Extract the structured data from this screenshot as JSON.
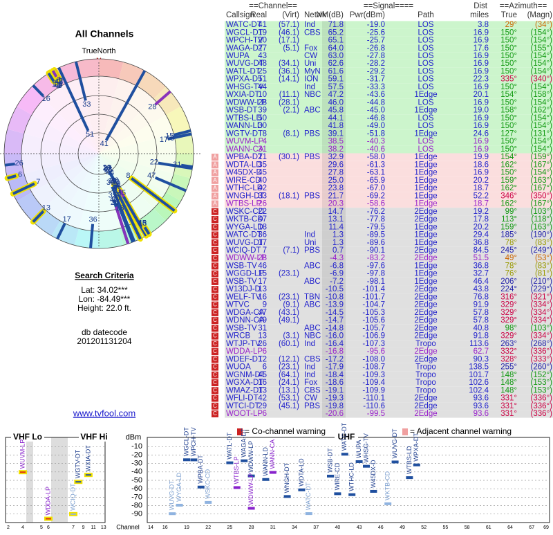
{
  "left": {
    "title": "All Channels",
    "true_north": "TrueNorth",
    "north": "N",
    "criteria_title": "Search Criteria",
    "lat": "Lat: 34.02***",
    "lon": "Lon: -84.49***",
    "height": "Height: 22.0 ft.",
    "datecode_label": "db datecode",
    "datecode": "201201131204",
    "link": "www.tvfool.com"
  },
  "table": {
    "header_top": [
      "==Channel==",
      "==Signal====",
      "Dist",
      "==Azimuth=="
    ],
    "header": [
      "Callsign",
      "Real",
      "(Virt)",
      "Netwk",
      "NM(dB)",
      "Pwr(dBm)",
      "Path",
      "miles",
      "True",
      "(Magn)"
    ],
    "groups": [
      {
        "bg": "#ccf5cc",
        "rows": [
          {
            "cells": [
              "WATC-DT",
              "41",
              "(57.1)",
              "Ind",
              "71.8",
              "-19.0",
              "LOS",
              "3.8",
              "29°",
              "(34°)"
            ],
            "color": "#2222cc"
          },
          {
            "cells": [
              "WGCL-DT",
              "19",
              "(46.1)",
              "CBS",
              "65.2",
              "-25.6",
              "LOS",
              "16.9",
              "150°",
              "(154°)"
            ],
            "color": "#2222cc"
          },
          {
            "cells": [
              "WPCH-TV",
              "20",
              "(17.1)",
              null,
              "65.1",
              "-25.7",
              "LOS",
              "16.9",
              "150°",
              "(154°)"
            ],
            "color": "#2222cc"
          },
          {
            "cells": [
              "WAGA-DT",
              "27",
              "(5.1)",
              "Fox",
              "64.0",
              "-26.8",
              "LOS",
              "17.6",
              "150°",
              "(155°)"
            ],
            "color": "#2222cc"
          },
          {
            "cells": [
              "WUPA",
              "43",
              null,
              "CW",
              "63.0",
              "-27.8",
              "LOS",
              "16.9",
              "150°",
              "(154°)"
            ],
            "color": "#2222cc"
          },
          {
            "cells": [
              "WUVG-DT",
              "48",
              "(34.1)",
              "Uni",
              "62.6",
              "-28.2",
              "LOS",
              "16.9",
              "150°",
              "(154°)"
            ],
            "color": "#2222cc"
          },
          {
            "cells": [
              "WATL-DT",
              "25",
              "(36.1)",
              "MyN",
              "61.6",
              "-29.2",
              "LOS",
              "16.9",
              "150°",
              "(154°)"
            ],
            "color": "#2222cc"
          },
          {
            "cells": [
              "WPXA-DT",
              "51",
              "(14.1)",
              "ION",
              "59.1",
              "-31.7",
              "LOS",
              "22.3",
              "335°",
              "(340°)"
            ],
            "color": "#2222cc"
          },
          {
            "cells": [
              "WHSG-TV",
              "44",
              null,
              "Ind",
              "57.5",
              "-33.3",
              "LOS",
              "16.9",
              "150°",
              "(154°)"
            ],
            "color": "#2222cc"
          },
          {
            "cells": [
              "WXIA-DT",
              "10",
              "(11.1)",
              "NBC",
              "47.2",
              "-43.6",
              "1Edge",
              "20.1",
              "154°",
              "(158°)"
            ],
            "color": "#2222cc"
          },
          {
            "cells": [
              "WDWW-LP",
              "28",
              "(28.1)",
              null,
              "46.0",
              "-44.8",
              "LOS",
              "16.9",
              "150°",
              "(154°)"
            ],
            "color": "#2222cc"
          },
          {
            "cells": [
              "WSB-DT",
              "39",
              "(2.1)",
              "ABC",
              "45.8",
              "-45.0",
              "1Edge",
              "19.0",
              "158°",
              "(162°)"
            ],
            "color": "#2222cc"
          },
          {
            "cells": [
              "WTBS-LD",
              "50",
              null,
              null,
              "44.1",
              "-46.8",
              "LOS",
              "16.9",
              "150°",
              "(154°)"
            ],
            "color": "#2222cc"
          },
          {
            "cells": [
              "WANN-LD",
              "30",
              null,
              null,
              "41.8",
              "-49.0",
              "LOS",
              "16.9",
              "150°",
              "(154°)"
            ],
            "color": "#2222cc"
          },
          {
            "cells": [
              "WGTV-DT",
              "8",
              "(8.1)",
              "PBS",
              "39.1",
              "-51.8",
              "1Edge",
              "24.6",
              "127°",
              "(131°)"
            ],
            "color": "#2222cc"
          },
          {
            "cells": [
              "WUVM-LP",
              "4",
              null,
              null,
              "38.5",
              "-40.3",
              "LOS",
              "16.9",
              "150°",
              "(154°)"
            ],
            "color": "#9922cc"
          },
          {
            "cells": [
              "WANN-CA",
              "31",
              null,
              null,
              "38.2",
              "-40.6",
              "LOS",
              "16.9",
              "150°",
              "(154°)"
            ],
            "color": "#9922cc"
          }
        ]
      },
      {
        "bg": "#fbdede",
        "rows": [
          {
            "cells": [
              "WPBA-DT",
              "21",
              "(30.1)",
              "PBS",
              "32.9",
              "-58.0",
              "1Edge",
              "19.9",
              "154°",
              "(159°)"
            ],
            "color": "#2222cc",
            "icon": "A"
          },
          {
            "cells": [
              "WDTA-LD",
              "35",
              null,
              null,
              "29.6",
              "-61.3",
              "1Edge",
              "18.6",
              "162°",
              "(167°)"
            ],
            "color": "#2222cc",
            "icon": "A"
          },
          {
            "cells": [
              "W45DX-D",
              "45",
              null,
              null,
              "27.8",
              "-63.1",
              "1Edge",
              "16.9",
              "150°",
              "(154°)"
            ],
            "color": "#2222cc",
            "icon": "A"
          },
          {
            "cells": [
              "WIRE-CD",
              "40",
              null,
              null,
              "25.0",
              "-65.9",
              "1Edge",
              "20.2",
              "159°",
              "(163°)"
            ],
            "color": "#2222cc",
            "icon": "A"
          },
          {
            "cells": [
              "WTHC-LD",
              "42",
              null,
              null,
              "23.8",
              "-67.0",
              "1Edge",
              "18.7",
              "162°",
              "(167°)"
            ],
            "color": "#2222cc",
            "icon": "A"
          },
          {
            "cells": [
              "WNGH-DT",
              "33",
              "(18.1)",
              "PBS",
              "21.7",
              "-69.2",
              "1Edge",
              "52.2",
              "346°",
              "(350°)"
            ],
            "color": "#2222cc",
            "icon": "A"
          },
          {
            "cells": [
              "WTBS-LP",
              "26",
              null,
              null,
              "20.3",
              "-58.6",
              "1Edge",
              "18.7",
              "162°",
              "(167°)"
            ],
            "color": "#9922cc",
            "icon": "A"
          }
        ]
      },
      {
        "bg": "#e0e0e0",
        "rows": [
          {
            "cells": [
              "WSKC-CD",
              "22",
              null,
              null,
              "14.7",
              "-76.2",
              "2Edge",
              "19.2",
              "99°",
              "(103°)"
            ],
            "color": "#2222cc",
            "icon": "C"
          },
          {
            "cells": [
              "WKTB-CD",
              "47",
              null,
              null,
              "13.1",
              "-77.8",
              "2Edge",
              "17.8",
              "113°",
              "(118°)"
            ],
            "color": "#2222cc",
            "icon": "C"
          },
          {
            "cells": [
              "WYGA-LD",
              "18",
              null,
              null,
              "11.4",
              "-79.5",
              "1Edge",
              "20.2",
              "159°",
              "(163°)"
            ],
            "color": "#2222cc",
            "icon": "C"
          },
          {
            "cells": [
              "WATC-DT",
              "36",
              null,
              "Ind",
              "1.3",
              "-89.5",
              "1Edge",
              "29.4",
              "185°",
              "(190°)"
            ],
            "color": "#2222cc",
            "icon": "C"
          },
          {
            "cells": [
              "WUVG-DT",
              "17",
              null,
              "Uni",
              "1.3",
              "-89.6",
              "1Edge",
              "36.8",
              "78°",
              "(83°)"
            ],
            "color": "#2222cc",
            "icon": "C"
          },
          {
            "cells": [
              "WCIQ-DT",
              "7",
              "(7.1)",
              "PBS",
              "0.7",
              "-90.1",
              "2Edge",
              "84.5",
              "245°",
              "(249°)"
            ],
            "color": "#2222cc",
            "icon": "C"
          },
          {
            "cells": [
              "WDWW-LP",
              "28",
              null,
              null,
              "-4.3",
              "-83.2",
              "2Edge",
              "51.5",
              "49°",
              "(53°)"
            ],
            "color": "#9922cc",
            "icon": "C"
          },
          {
            "cells": [
              "WSB-TV",
              "46",
              null,
              "ABC",
              "-6.8",
              "-97.6",
              "1Edge",
              "36.8",
              "78°",
              "(83°)"
            ],
            "color": "#2222cc",
            "icon": "C"
          },
          {
            "cells": [
              "WGGD-LP",
              "15",
              "(23.1)",
              null,
              "-6.9",
              "-97.8",
              "1Edge",
              "32.7",
              "76°",
              "(81°)"
            ],
            "color": "#2222cc",
            "icon": "C"
          },
          {
            "cells": [
              "WSB-TV",
              "17",
              null,
              "ABC",
              "-7.2",
              "-98.1",
              "1Edge",
              "46.4",
              "206°",
              "(210°)"
            ],
            "color": "#2222cc",
            "icon": "C"
          },
          {
            "cells": [
              "W13DJ-D",
              "13",
              null,
              null,
              "-10.5",
              "-101.4",
              "2Edge",
              "43.8",
              "224°",
              "(229°)"
            ],
            "color": "#2222cc",
            "icon": "C"
          },
          {
            "cells": [
              "WELF-TV",
              "16",
              "(23.1)",
              "TBN",
              "-10.8",
              "-101.7",
              "2Edge",
              "76.8",
              "316°",
              "(321°)"
            ],
            "color": "#2222cc",
            "icon": "C"
          },
          {
            "cells": [
              "WTVC",
              "9",
              "(9.1)",
              "ABC",
              "-13.9",
              "-104.7",
              "2Edge",
              "91.9",
              "329°",
              "(334°)"
            ],
            "color": "#2222cc",
            "icon": "C"
          },
          {
            "cells": [
              "WDGA-CA",
              "47",
              "(43.1)",
              null,
              "-14.5",
              "-105.3",
              "2Edge",
              "57.8",
              "329°",
              "(334°)"
            ],
            "color": "#2222cc",
            "icon": "C"
          },
          {
            "cells": [
              "WDNN-CA",
              "49",
              "(49.1)",
              null,
              "-14.7",
              "-105.6",
              "2Edge",
              "57.8",
              "329°",
              "(334°)"
            ],
            "color": "#2222cc",
            "icon": "C"
          },
          {
            "cells": [
              "WSB-TV",
              "31",
              null,
              "ABC",
              "-14.8",
              "-105.7",
              "2Edge",
              "40.8",
              "98°",
              "(103°)"
            ],
            "color": "#2222cc",
            "icon": "C"
          },
          {
            "cells": [
              "WRCB",
              "13",
              "(3.1)",
              "NBC",
              "-16.0",
              "-106.9",
              "2Edge",
              "91.8",
              "329°",
              "(334°)"
            ],
            "color": "#2222cc",
            "icon": "C"
          },
          {
            "cells": [
              "WTJP-TV",
              "26",
              "(60.1)",
              "Ind",
              "-16.4",
              "-107.3",
              "Tropo",
              "113.6",
              "263°",
              "(268°)"
            ],
            "color": "#2222cc",
            "icon": "C"
          },
          {
            "cells": [
              "WDDA-LP",
              "6",
              null,
              null,
              "-16.8",
              "-95.6",
              "2Edge",
              "62.7",
              "332°",
              "(336°)"
            ],
            "color": "#9922cc",
            "icon": "C"
          },
          {
            "cells": [
              "WDEF-DT",
              "12",
              "(12.1)",
              "CBS",
              "-17.2",
              "-108.0",
              "2Edge",
              "90.3",
              "328°",
              "(333°)"
            ],
            "color": "#2222cc",
            "icon": "C"
          },
          {
            "cells": [
              "WUOA",
              "6",
              "(23.1)",
              "Ind",
              "-17.9",
              "-108.7",
              "Tropo",
              "138.5",
              "255°",
              "(260°)"
            ],
            "color": "#2222cc",
            "icon": "C"
          },
          {
            "cells": [
              "WGNM-DT",
              "45",
              "(64.1)",
              "Ind",
              "-18.4",
              "-109.3",
              "Tropo",
              "101.7",
              "148°",
              "(152°)"
            ],
            "color": "#2222cc",
            "icon": "C"
          },
          {
            "cells": [
              "WGXA-DT",
              "16",
              "(24.1)",
              "Fox",
              "-18.6",
              "-109.4",
              "Tropo",
              "102.6",
              "148°",
              "(153°)"
            ],
            "color": "#2222cc",
            "icon": "C"
          },
          {
            "cells": [
              "WMAZ-DT",
              "13",
              "(13.1)",
              "CBS",
              "-19.1",
              "-109.9",
              "Tropo",
              "102.4",
              "148°",
              "(153°)"
            ],
            "color": "#2222cc",
            "icon": "C"
          },
          {
            "cells": [
              "WFLI-DT",
              "42",
              "(53.1)",
              "CW",
              "-19.3",
              "-110.1",
              "2Edge",
              "93.6",
              "331°",
              "(336°)"
            ],
            "color": "#2222cc",
            "icon": "C"
          },
          {
            "cells": [
              "WTCI-DT",
              "29",
              "(45.1)",
              "PBS",
              "-19.8",
              "-110.6",
              "2Edge",
              "93.6",
              "331°",
              "(336°)"
            ],
            "color": "#2222cc",
            "icon": "C"
          },
          {
            "cells": [
              "WOOT-LP",
              "6",
              null,
              null,
              "-20.6",
              "-99.5",
              "2Edge",
              "93.6",
              "331°",
              "(336°)"
            ],
            "color": "#9922cc",
            "icon": "C"
          }
        ]
      }
    ]
  },
  "legend": {
    "co": "= Co-channel warning",
    "adj": "= Adjacent channel warning"
  },
  "spectrum": {
    "vhf_lo": "VHF Lo",
    "vhf_hi": "VHF Hi",
    "uhf": "UHF",
    "y_label": "dBm",
    "x_label": "Channel",
    "ylim": [
      -96,
      -4
    ],
    "yticks": [
      -10,
      -20,
      -30,
      -40,
      -50,
      -60,
      -70,
      -80,
      -90
    ],
    "lo_ticks": [
      2,
      4,
      5,
      6
    ],
    "hi_ticks": [
      7,
      9,
      11,
      13
    ],
    "uhf_ticks": [
      14,
      16,
      19,
      22,
      25,
      28,
      31,
      34,
      37,
      40,
      43,
      46,
      49,
      52,
      55,
      58,
      61,
      64,
      67,
      69
    ]
  }
}
